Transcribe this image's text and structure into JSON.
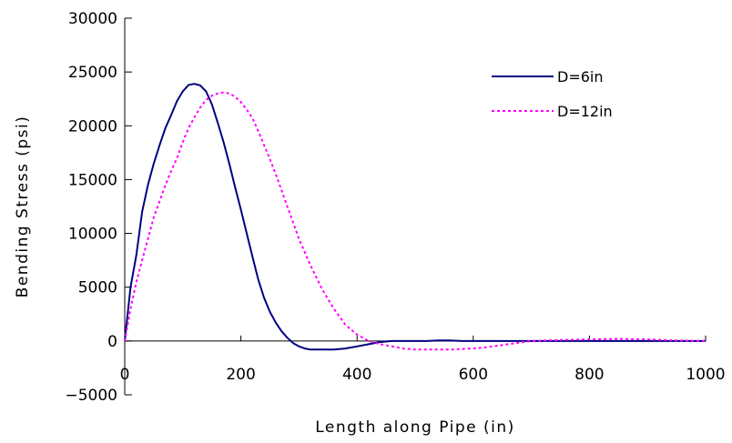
{
  "chart_data": {
    "type": "line",
    "title": "",
    "xlabel": "Length along Pipe (in)",
    "ylabel": "Bending Stress (psi)",
    "xlim": [
      0,
      1000
    ],
    "ylim": [
      -5000,
      30000
    ],
    "xticks": [
      0,
      200,
      400,
      600,
      800,
      1000
    ],
    "yticks": [
      -5000,
      0,
      5000,
      10000,
      15000,
      20000,
      25000,
      30000
    ],
    "xtick_labels": [
      "0",
      "200",
      "400",
      "600",
      "800",
      "1000"
    ],
    "ytick_labels": [
      "-5000",
      "0",
      "5000",
      "10000",
      "15000",
      "20000",
      "25000",
      "30000"
    ],
    "grid": false,
    "legend_position": "top-right",
    "series": [
      {
        "name": "D=6in",
        "color": "#000080",
        "style": "solid",
        "x": [
          0,
          10,
          20,
          30,
          40,
          50,
          60,
          70,
          80,
          90,
          100,
          110,
          120,
          130,
          140,
          150,
          160,
          170,
          180,
          190,
          200,
          210,
          220,
          230,
          240,
          250,
          260,
          270,
          280,
          290,
          300,
          310,
          320,
          330,
          340,
          360,
          380,
          400,
          420,
          440,
          460,
          500,
          520,
          540,
          560,
          580,
          600,
          700,
          800,
          900,
          1000
        ],
        "y": [
          0,
          5000,
          8000,
          12000,
          14500,
          16500,
          18200,
          19800,
          21000,
          22300,
          23200,
          23800,
          23900,
          23750,
          23200,
          22000,
          20300,
          18500,
          16500,
          14300,
          12200,
          10000,
          7800,
          5700,
          4000,
          2700,
          1700,
          900,
          300,
          -200,
          -500,
          -700,
          -800,
          -800,
          -800,
          -800,
          -700,
          -500,
          -300,
          -100,
          0,
          0,
          0,
          50,
          50,
          0,
          0,
          0,
          0,
          0,
          0
        ]
      },
      {
        "name": "D=12in",
        "color": "#ff00ff",
        "style": "dotted",
        "x": [
          0,
          10,
          20,
          30,
          40,
          50,
          60,
          70,
          80,
          90,
          100,
          110,
          120,
          130,
          140,
          150,
          160,
          170,
          180,
          190,
          200,
          210,
          220,
          230,
          240,
          250,
          260,
          270,
          280,
          290,
          300,
          320,
          340,
          360,
          380,
          400,
          420,
          440,
          460,
          480,
          500,
          520,
          540,
          560,
          580,
          600,
          620,
          640,
          660,
          680,
          700,
          750,
          800,
          850,
          900,
          950,
          1000
        ],
        "y": [
          0,
          3000,
          5500,
          7500,
          9500,
          11500,
          13000,
          14500,
          15800,
          17000,
          18500,
          19800,
          20800,
          21700,
          22400,
          22800,
          23000,
          23100,
          23000,
          22700,
          22200,
          21500,
          20700,
          19500,
          18200,
          16900,
          15500,
          14000,
          12500,
          11000,
          9500,
          7000,
          4800,
          3000,
          1500,
          600,
          0,
          -300,
          -500,
          -700,
          -800,
          -800,
          -800,
          -800,
          -750,
          -700,
          -600,
          -450,
          -300,
          -150,
          0,
          100,
          150,
          200,
          150,
          50,
          0
        ]
      }
    ]
  }
}
